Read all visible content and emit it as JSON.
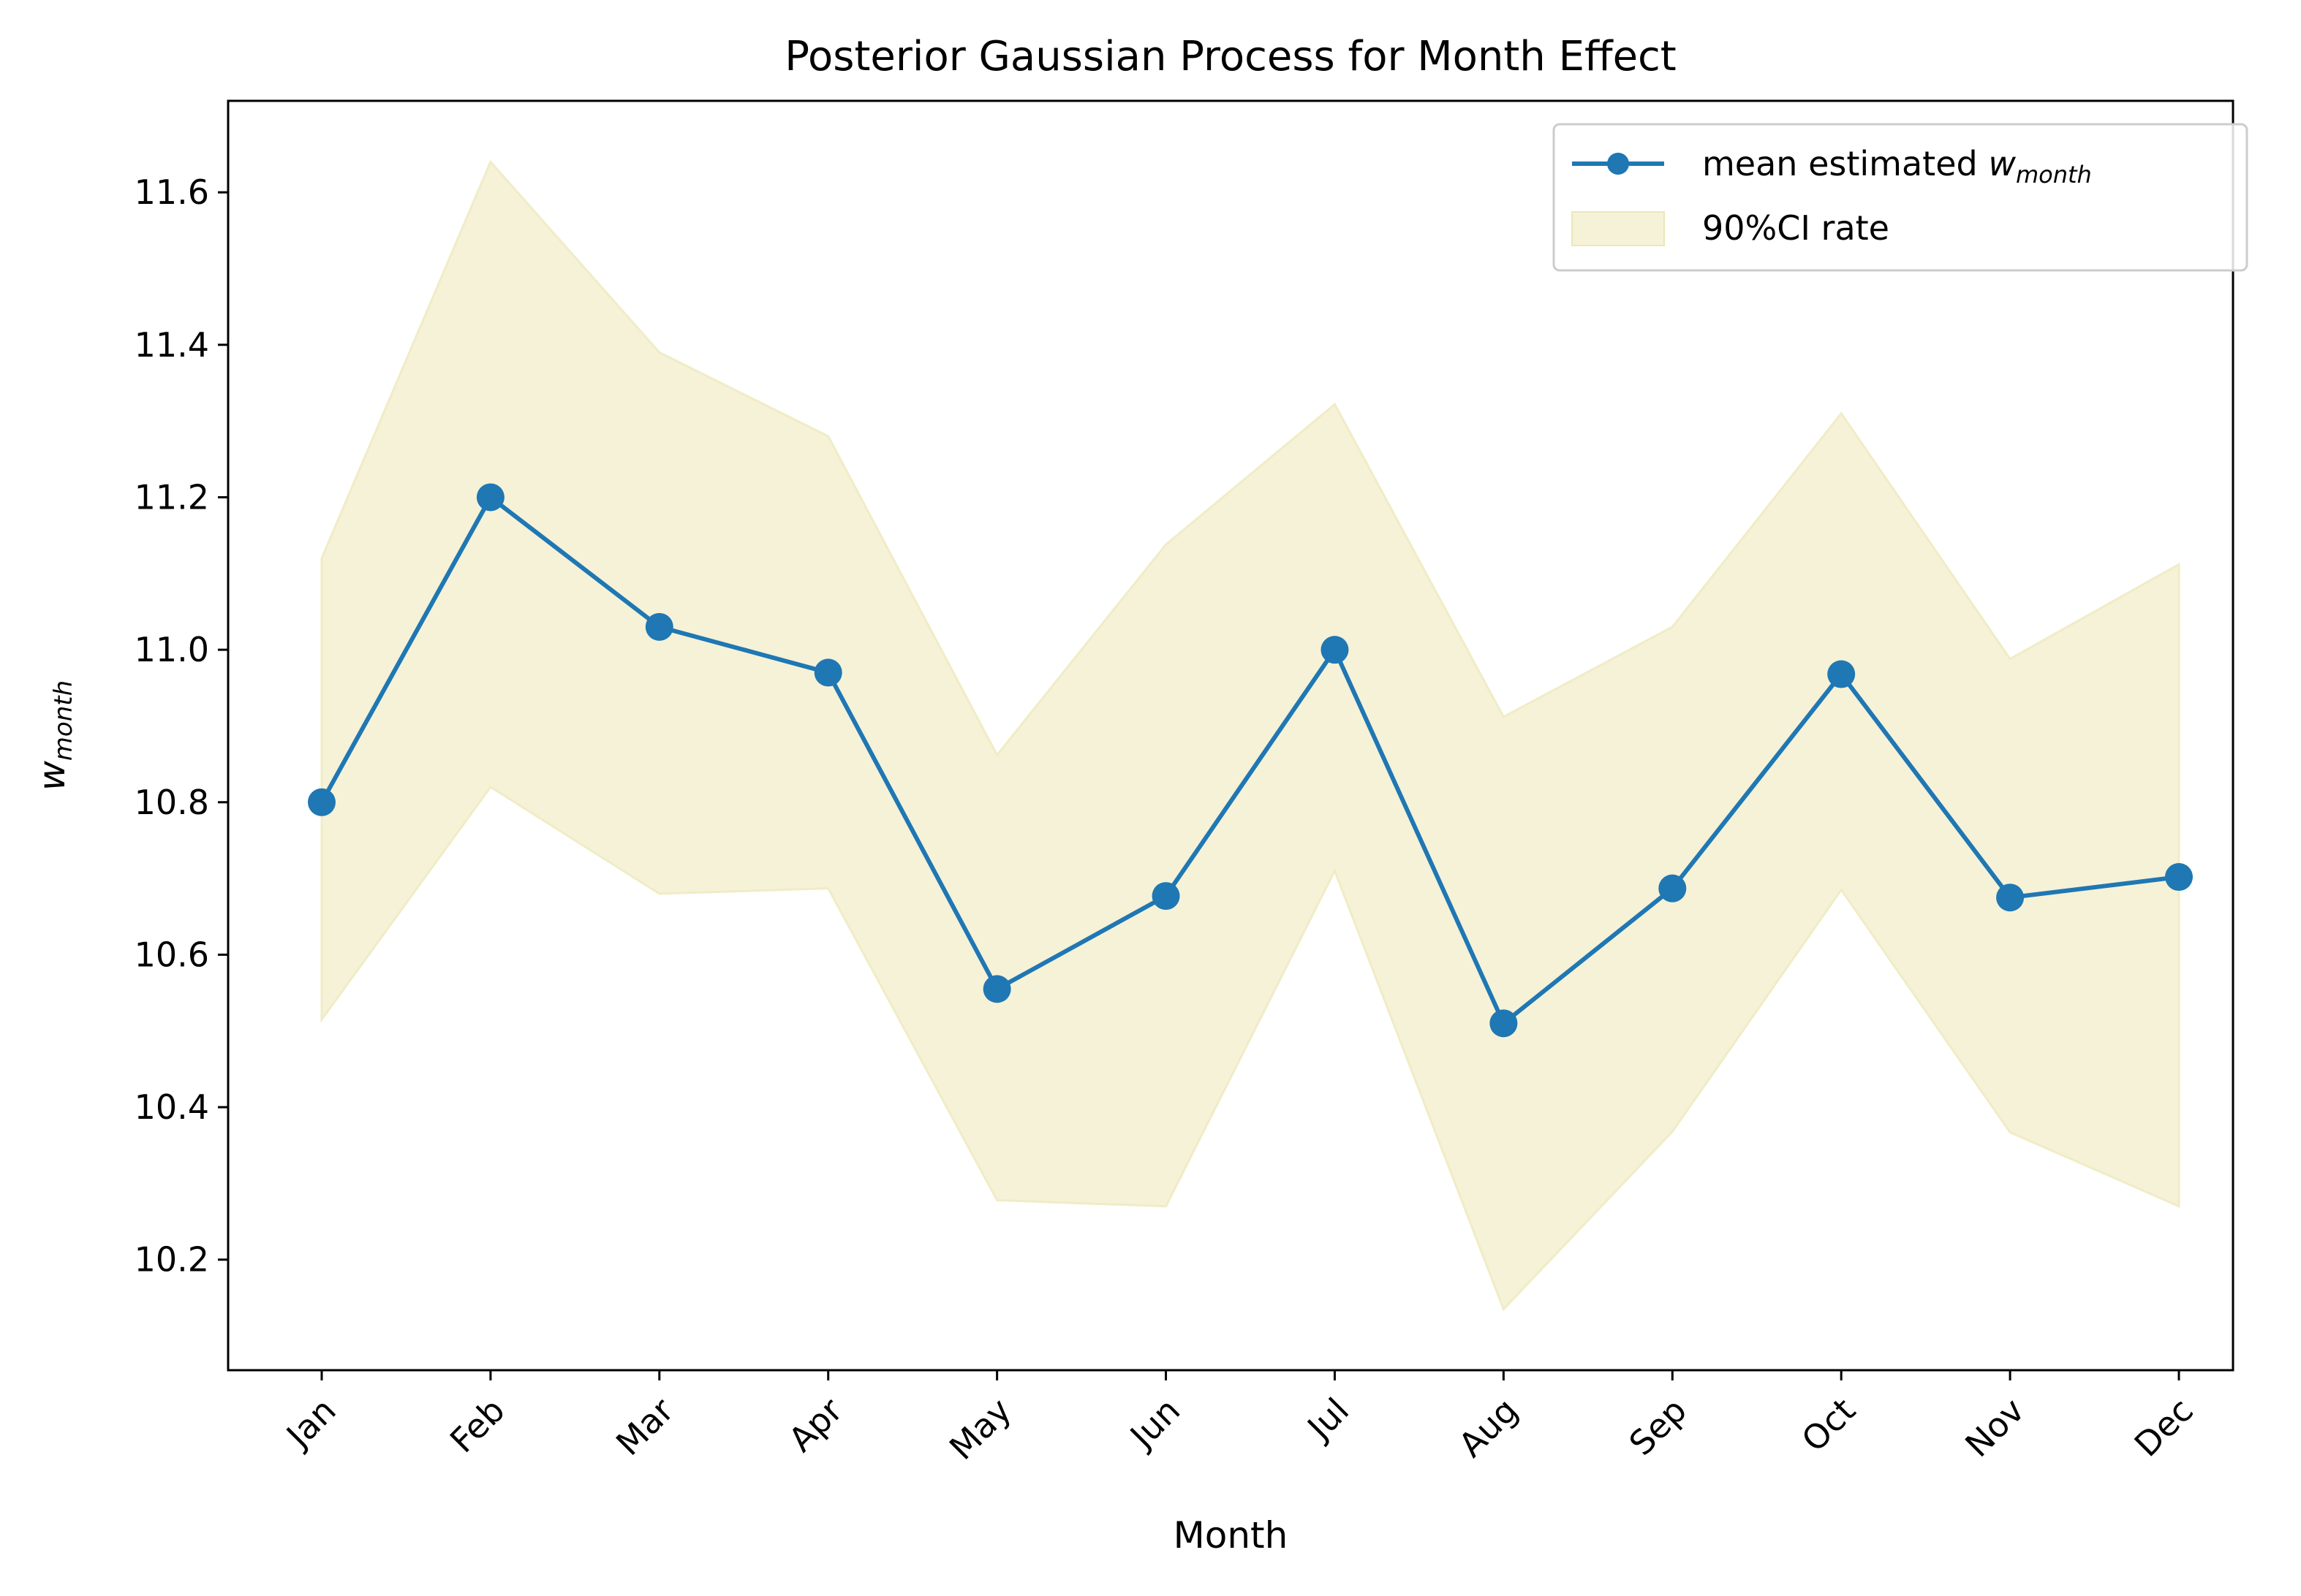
{
  "chart_data": {
    "type": "line",
    "title": "Posterior Gaussian Process for Month Effect",
    "xlabel": "Month",
    "ylabel": {
      "base": "w",
      "sub": "month"
    },
    "categories": [
      "Jan",
      "Feb",
      "Mar",
      "Apr",
      "May",
      "Jun",
      "Jul",
      "Aug",
      "Sep",
      "Oct",
      "Nov",
      "Dec"
    ],
    "ylim": [
      10.055,
      11.72
    ],
    "yticks": [
      10.2,
      10.4,
      10.6,
      10.8,
      11.0,
      11.2,
      11.4,
      11.6
    ],
    "ytick_labels": [
      "10.2",
      "10.4",
      "10.6",
      "10.8",
      "11.0",
      "11.2",
      "11.4",
      "11.6"
    ],
    "grid": false,
    "legend_position": "top-right",
    "series": [
      {
        "name": {
          "text": "mean estimated ",
          "base": "w",
          "sub": "month"
        },
        "kind": "line-marker",
        "color": "#1f77b4",
        "values": [
          10.8,
          11.2,
          11.03,
          10.97,
          10.555,
          10.677,
          11.0,
          10.51,
          10.687,
          10.968,
          10.675,
          10.702
        ]
      }
    ],
    "band": {
      "name": "90%CI rate",
      "color": "#f5f2d7",
      "lower": [
        10.515,
        10.82,
        10.68,
        10.687,
        10.278,
        10.27,
        10.71,
        10.135,
        10.368,
        10.685,
        10.367,
        10.27
      ],
      "upper": [
        11.12,
        11.64,
        11.39,
        11.28,
        10.862,
        11.138,
        11.322,
        10.912,
        11.03,
        11.31,
        10.988,
        11.112
      ]
    }
  }
}
